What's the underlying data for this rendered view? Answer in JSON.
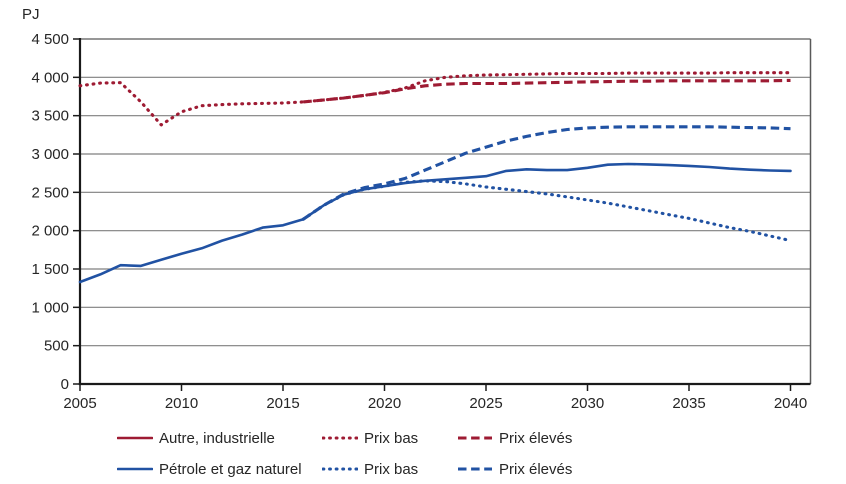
{
  "colors": {
    "red": "#9e1b33",
    "blue": "#2152a3",
    "grid": "#7f7f7f",
    "frame": "#595959",
    "axis": "#1a1a1a",
    "text": "#262626",
    "background": "#ffffff"
  },
  "chart_data": {
    "type": "line",
    "title": "",
    "unit_label": "PJ",
    "xlabel": "",
    "ylabel": "PJ",
    "ylim": [
      0,
      4500
    ],
    "ytick_step": 500,
    "grid": "horizontal",
    "legend_position": "bottom",
    "x_years": [
      2005,
      2006,
      2007,
      2008,
      2009,
      2010,
      2011,
      2012,
      2013,
      2014,
      2015,
      2016,
      2017,
      2018,
      2019,
      2020,
      2021,
      2022,
      2023,
      2024,
      2025,
      2026,
      2027,
      2028,
      2029,
      2030,
      2031,
      2032,
      2033,
      2034,
      2035,
      2036,
      2037,
      2038,
      2039,
      2040
    ],
    "x_tick_years": [
      2005,
      2010,
      2015,
      2020,
      2025,
      2030,
      2035,
      2040
    ],
    "x_tick_labels": [
      "2005",
      "2010",
      "2015",
      "2020",
      "2025",
      "2030",
      "2035",
      "2040"
    ],
    "y_tick_values": [
      0,
      500,
      1000,
      1500,
      2000,
      2500,
      3000,
      3500,
      4000,
      4500
    ],
    "y_tick_labels": [
      "0",
      "500",
      "1 000",
      "1 500",
      "2 000",
      "2 500",
      "3 000",
      "3 500",
      "4 000",
      "4 500"
    ],
    "series": [
      {
        "name": "Autre, industrielle",
        "color": "red",
        "style": "solid",
        "legend_only": true,
        "values": null
      },
      {
        "name": "Prix bas",
        "group": "Autre, industrielle",
        "color": "red",
        "style": "dotted",
        "values": [
          3890,
          3925,
          3930,
          3680,
          3380,
          3550,
          3630,
          3645,
          3655,
          3660,
          3665,
          3680,
          3705,
          3730,
          3765,
          3805,
          3860,
          3955,
          4000,
          4020,
          4030,
          4035,
          4040,
          4045,
          4050,
          4050,
          4050,
          4055,
          4055,
          4055,
          4055,
          4055,
          4060,
          4060,
          4060,
          4060
        ]
      },
      {
        "name": "Prix élevés",
        "group": "Autre, industrielle",
        "color": "red",
        "style": "dashed",
        "values": [
          null,
          null,
          null,
          null,
          null,
          null,
          null,
          null,
          null,
          null,
          null,
          3680,
          3705,
          3730,
          3765,
          3800,
          3850,
          3890,
          3910,
          3920,
          3920,
          3920,
          3925,
          3930,
          3935,
          3940,
          3945,
          3950,
          3950,
          3955,
          3955,
          3955,
          3955,
          3955,
          3955,
          3960
        ]
      },
      {
        "name": "Pétrole et gaz naturel",
        "color": "blue",
        "style": "solid",
        "values": [
          1330,
          1430,
          1550,
          1540,
          1620,
          1700,
          1770,
          1870,
          1950,
          2040,
          2070,
          2150,
          2330,
          2470,
          2540,
          2580,
          2620,
          2650,
          2670,
          2690,
          2710,
          2780,
          2800,
          2790,
          2790,
          2820,
          2860,
          2870,
          2865,
          2855,
          2845,
          2830,
          2810,
          2795,
          2785,
          2780
        ]
      },
      {
        "name": "Prix bas",
        "group": "Pétrole et gaz naturel",
        "color": "blue",
        "style": "dotted",
        "values": [
          null,
          null,
          null,
          null,
          null,
          null,
          null,
          null,
          null,
          null,
          null,
          2150,
          2330,
          2470,
          2540,
          2580,
          2630,
          2650,
          2640,
          2610,
          2570,
          2540,
          2510,
          2480,
          2440,
          2400,
          2360,
          2310,
          2260,
          2210,
          2160,
          2100,
          2040,
          1990,
          1930,
          1870
        ]
      },
      {
        "name": "Prix élevés",
        "group": "Pétrole et gaz naturel",
        "color": "blue",
        "style": "dashed",
        "values": [
          null,
          null,
          null,
          null,
          null,
          null,
          null,
          null,
          null,
          null,
          null,
          2150,
          2330,
          2480,
          2560,
          2610,
          2680,
          2790,
          2900,
          3010,
          3090,
          3170,
          3230,
          3280,
          3320,
          3340,
          3350,
          3355,
          3355,
          3355,
          3355,
          3355,
          3350,
          3345,
          3340,
          3330
        ]
      }
    ]
  },
  "legend": {
    "rows": [
      {
        "items": [
          {
            "label": "Autre, industrielle",
            "color": "red",
            "style": "solid"
          },
          {
            "label": "Prix bas",
            "color": "red",
            "style": "dotted"
          },
          {
            "label": "Prix élevés",
            "color": "red",
            "style": "dashed"
          }
        ]
      },
      {
        "items": [
          {
            "label": "Pétrole et gaz naturel",
            "color": "blue",
            "style": "solid"
          },
          {
            "label": "Prix bas",
            "color": "blue",
            "style": "dotted"
          },
          {
            "label": "Prix élevés",
            "color": "blue",
            "style": "dashed"
          }
        ]
      }
    ]
  }
}
